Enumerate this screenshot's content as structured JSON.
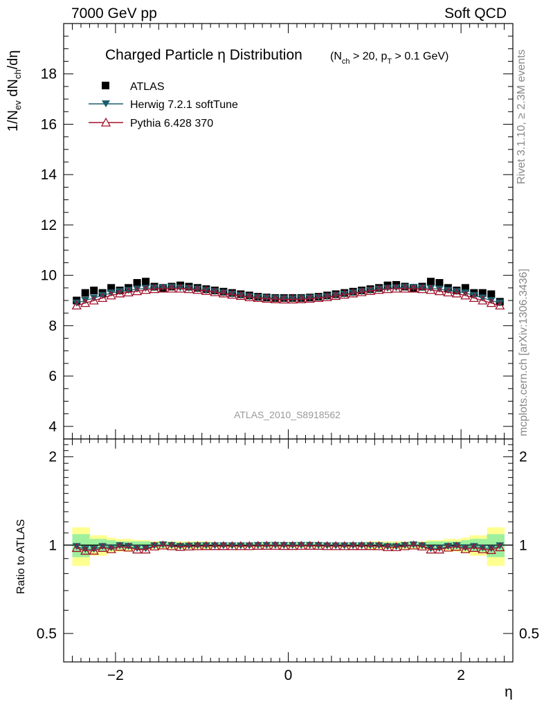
{
  "header": {
    "left": "7000 GeV pp",
    "right": "Soft QCD"
  },
  "side": {
    "rivet": "Rivet 3.1.10, ≥ 2.3M events",
    "mcplots": "mcplots.cern.ch [arXiv:1306.3436]"
  },
  "chart_data": {
    "type": "scatter",
    "title": "Charged Particle η Distribution",
    "title_cuts": "(N_ch > 20, p_T > 0.1 GeV)",
    "analysis_label": "ATLAS_2010_S8918562",
    "xlabel": "η",
    "ylabel": "1/N_ev dN_ch/dη",
    "ratio_ylabel": "Ratio to ATLAS",
    "xlim": [
      -2.6,
      2.6
    ],
    "ylim": [
      3.5,
      20
    ],
    "ratio_ylim": [
      0.4,
      2.3
    ],
    "ratio_ticks": [
      0.5,
      1,
      2
    ],
    "x_ticks": [
      -2,
      0,
      2
    ],
    "y_ticks": [
      4,
      6,
      8,
      10,
      12,
      14,
      16,
      18
    ],
    "x": [
      -2.45,
      -2.35,
      -2.25,
      -2.15,
      -2.05,
      -1.95,
      -1.85,
      -1.75,
      -1.65,
      -1.55,
      -1.45,
      -1.35,
      -1.25,
      -1.15,
      -1.05,
      -0.95,
      -0.85,
      -0.75,
      -0.65,
      -0.55,
      -0.45,
      -0.35,
      -0.25,
      -0.15,
      -0.05,
      0.05,
      0.15,
      0.25,
      0.35,
      0.45,
      0.55,
      0.65,
      0.75,
      0.85,
      0.95,
      1.05,
      1.15,
      1.25,
      1.35,
      1.45,
      1.55,
      1.65,
      1.75,
      1.85,
      1.95,
      2.05,
      2.15,
      2.25,
      2.35,
      2.45
    ],
    "series": [
      {
        "name": "ATLAS",
        "marker": "square",
        "color": "#000000",
        "values": [
          9.0,
          9.3,
          9.4,
          9.3,
          9.5,
          9.4,
          9.5,
          9.7,
          9.75,
          9.55,
          9.5,
          9.55,
          9.6,
          9.55,
          9.5,
          9.45,
          9.4,
          9.35,
          9.3,
          9.25,
          9.2,
          9.15,
          9.12,
          9.1,
          9.1,
          9.1,
          9.1,
          9.12,
          9.15,
          9.2,
          9.25,
          9.3,
          9.35,
          9.4,
          9.45,
          9.5,
          9.6,
          9.62,
          9.55,
          9.5,
          9.55,
          9.75,
          9.7,
          9.5,
          9.4,
          9.5,
          9.3,
          9.3,
          9.25,
          8.95
        ]
      },
      {
        "name": "Herwig 7.2.1 softTune",
        "marker": "triangle-down",
        "color": "#1b5e6b",
        "values": [
          8.9,
          9.0,
          9.1,
          9.2,
          9.3,
          9.35,
          9.4,
          9.45,
          9.48,
          9.5,
          9.52,
          9.52,
          9.5,
          9.48,
          9.45,
          9.4,
          9.35,
          9.3,
          9.25,
          9.2,
          9.15,
          9.12,
          9.1,
          9.08,
          9.07,
          9.07,
          9.08,
          9.1,
          9.12,
          9.15,
          9.2,
          9.25,
          9.3,
          9.35,
          9.4,
          9.45,
          9.48,
          9.5,
          9.52,
          9.52,
          9.5,
          9.48,
          9.45,
          9.4,
          9.35,
          9.3,
          9.2,
          9.1,
          9.0,
          8.9
        ]
      },
      {
        "name": "Pythia 6.428 370",
        "marker": "triangle-up-open",
        "color": "#a0102a",
        "values": [
          8.8,
          8.9,
          9.0,
          9.1,
          9.2,
          9.28,
          9.32,
          9.37,
          9.42,
          9.45,
          9.47,
          9.47,
          9.47,
          9.45,
          9.42,
          9.38,
          9.33,
          9.28,
          9.23,
          9.18,
          9.13,
          9.1,
          9.07,
          9.05,
          9.04,
          9.04,
          9.05,
          9.07,
          9.1,
          9.13,
          9.18,
          9.23,
          9.28,
          9.33,
          9.38,
          9.42,
          9.45,
          9.47,
          9.47,
          9.47,
          9.45,
          9.42,
          9.37,
          9.32,
          9.28,
          9.2,
          9.1,
          9.0,
          8.9,
          8.8
        ]
      }
    ],
    "ratio_band_inner": [
      0.09,
      0.09,
      0.05,
      0.05,
      0.04,
      0.03,
      0.03,
      0.03,
      0.03,
      0.02,
      0.02,
      0.02,
      0.02,
      0.02,
      0.02,
      0.02,
      0.015,
      0.015,
      0.015,
      0.015,
      0.015,
      0.015,
      0.015,
      0.015,
      0.015,
      0.015,
      0.015,
      0.015,
      0.015,
      0.015,
      0.015,
      0.015,
      0.015,
      0.015,
      0.02,
      0.02,
      0.02,
      0.02,
      0.02,
      0.02,
      0.02,
      0.03,
      0.03,
      0.03,
      0.03,
      0.04,
      0.05,
      0.05,
      0.09,
      0.09
    ],
    "ratio_band_outer": [
      0.15,
      0.15,
      0.08,
      0.08,
      0.06,
      0.05,
      0.05,
      0.04,
      0.04,
      0.03,
      0.03,
      0.03,
      0.03,
      0.03,
      0.03,
      0.03,
      0.02,
      0.02,
      0.02,
      0.02,
      0.02,
      0.02,
      0.02,
      0.02,
      0.02,
      0.02,
      0.02,
      0.02,
      0.02,
      0.02,
      0.02,
      0.02,
      0.02,
      0.02,
      0.03,
      0.03,
      0.03,
      0.03,
      0.03,
      0.03,
      0.03,
      0.04,
      0.04,
      0.05,
      0.05,
      0.06,
      0.08,
      0.08,
      0.15,
      0.15
    ],
    "legend_position": "top-left",
    "band_colors": {
      "inner": "#9ef09e",
      "outer": "#ffff90"
    }
  }
}
